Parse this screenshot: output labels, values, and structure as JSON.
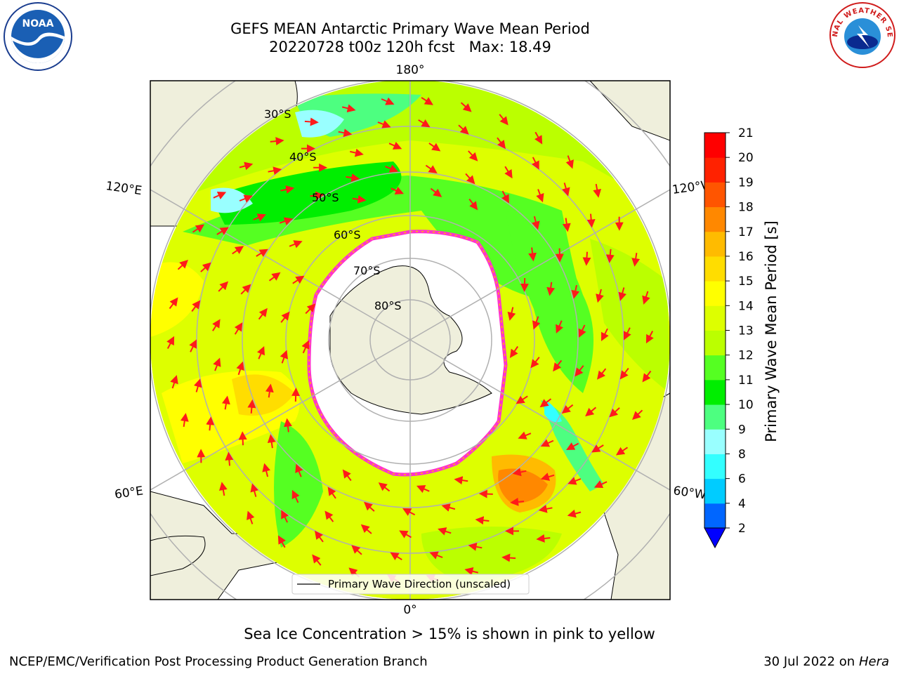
{
  "title": {
    "line1": "GEFS MEAN Antarctic Primary Wave Mean Period",
    "line2": "20220728 t00z 120h fcst   Max: 18.49"
  },
  "map": {
    "projection": "south-polar-stereographic",
    "longitude_labels": [
      "180°",
      "120°E",
      "120°W",
      "60°E",
      "60°W",
      "0°"
    ],
    "latitude_labels": [
      "30°S",
      "40°S",
      "50°S",
      "60°S",
      "70°S",
      "80°S"
    ],
    "legend_label": "Primary Wave Direction (unscaled)",
    "arrow_color": "#ff1a1a",
    "land_color": "#efefdc",
    "ocean_color": "#ffffff"
  },
  "colorbar": {
    "label": "Primary Wave Mean Period [s]",
    "ticks": [
      "2",
      "4",
      "6",
      "8",
      "9",
      "10",
      "11",
      "12",
      "13",
      "14",
      "15",
      "16",
      "17",
      "18",
      "19",
      "20",
      "21"
    ],
    "colors": [
      "#0066ff",
      "#00ccff",
      "#33ffff",
      "#99ffff",
      "#4dff80",
      "#00ee00",
      "#55ff22",
      "#bbff00",
      "#ddff00",
      "#ffff00",
      "#ffdd00",
      "#ffbb00",
      "#ff8800",
      "#ff5500",
      "#ff2200",
      "#ff0000"
    ],
    "under_color": "#0000ff"
  },
  "footer": {
    "note": "Sea Ice Concentration > 15% is shown in pink to yellow",
    "credit": "NCEP/EMC/Verification Post Processing Product Generation Branch",
    "date": "30 Jul 2022 on ",
    "machine": "Hera"
  },
  "logos": {
    "noaa_text": "NOAA",
    "nws_text": "NATIONAL WEATHER SERVICE"
  }
}
